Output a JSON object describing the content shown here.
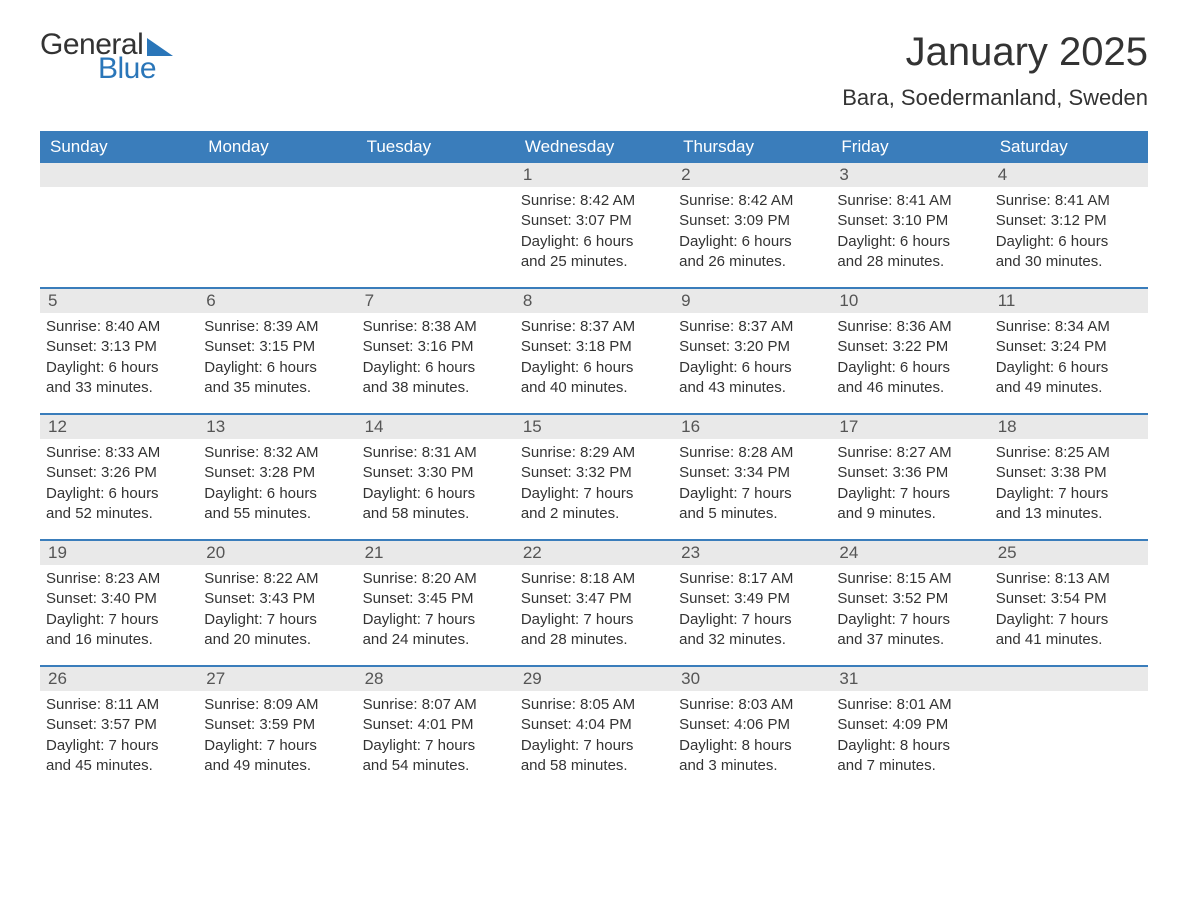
{
  "logo": {
    "text1": "General",
    "text2": "Blue"
  },
  "title": "January 2025",
  "location": "Bara, Soedermanland, Sweden",
  "colors": {
    "brand_blue": "#2a76b9",
    "header_blue": "#3a7dbb",
    "daynum_bg": "#e9e9e9",
    "text": "#333333",
    "background": "#ffffff"
  },
  "typography": {
    "title_fontsize": 40,
    "location_fontsize": 22,
    "weekday_fontsize": 17,
    "daynum_fontsize": 17,
    "body_fontsize": 15
  },
  "weekdays": [
    "Sunday",
    "Monday",
    "Tuesday",
    "Wednesday",
    "Thursday",
    "Friday",
    "Saturday"
  ],
  "weeks": [
    [
      null,
      null,
      null,
      {
        "n": "1",
        "sunrise": "Sunrise: 8:42 AM",
        "sunset": "Sunset: 3:07 PM",
        "d1": "Daylight: 6 hours",
        "d2": "and 25 minutes."
      },
      {
        "n": "2",
        "sunrise": "Sunrise: 8:42 AM",
        "sunset": "Sunset: 3:09 PM",
        "d1": "Daylight: 6 hours",
        "d2": "and 26 minutes."
      },
      {
        "n": "3",
        "sunrise": "Sunrise: 8:41 AM",
        "sunset": "Sunset: 3:10 PM",
        "d1": "Daylight: 6 hours",
        "d2": "and 28 minutes."
      },
      {
        "n": "4",
        "sunrise": "Sunrise: 8:41 AM",
        "sunset": "Sunset: 3:12 PM",
        "d1": "Daylight: 6 hours",
        "d2": "and 30 minutes."
      }
    ],
    [
      {
        "n": "5",
        "sunrise": "Sunrise: 8:40 AM",
        "sunset": "Sunset: 3:13 PM",
        "d1": "Daylight: 6 hours",
        "d2": "and 33 minutes."
      },
      {
        "n": "6",
        "sunrise": "Sunrise: 8:39 AM",
        "sunset": "Sunset: 3:15 PM",
        "d1": "Daylight: 6 hours",
        "d2": "and 35 minutes."
      },
      {
        "n": "7",
        "sunrise": "Sunrise: 8:38 AM",
        "sunset": "Sunset: 3:16 PM",
        "d1": "Daylight: 6 hours",
        "d2": "and 38 minutes."
      },
      {
        "n": "8",
        "sunrise": "Sunrise: 8:37 AM",
        "sunset": "Sunset: 3:18 PM",
        "d1": "Daylight: 6 hours",
        "d2": "and 40 minutes."
      },
      {
        "n": "9",
        "sunrise": "Sunrise: 8:37 AM",
        "sunset": "Sunset: 3:20 PM",
        "d1": "Daylight: 6 hours",
        "d2": "and 43 minutes."
      },
      {
        "n": "10",
        "sunrise": "Sunrise: 8:36 AM",
        "sunset": "Sunset: 3:22 PM",
        "d1": "Daylight: 6 hours",
        "d2": "and 46 minutes."
      },
      {
        "n": "11",
        "sunrise": "Sunrise: 8:34 AM",
        "sunset": "Sunset: 3:24 PM",
        "d1": "Daylight: 6 hours",
        "d2": "and 49 minutes."
      }
    ],
    [
      {
        "n": "12",
        "sunrise": "Sunrise: 8:33 AM",
        "sunset": "Sunset: 3:26 PM",
        "d1": "Daylight: 6 hours",
        "d2": "and 52 minutes."
      },
      {
        "n": "13",
        "sunrise": "Sunrise: 8:32 AM",
        "sunset": "Sunset: 3:28 PM",
        "d1": "Daylight: 6 hours",
        "d2": "and 55 minutes."
      },
      {
        "n": "14",
        "sunrise": "Sunrise: 8:31 AM",
        "sunset": "Sunset: 3:30 PM",
        "d1": "Daylight: 6 hours",
        "d2": "and 58 minutes."
      },
      {
        "n": "15",
        "sunrise": "Sunrise: 8:29 AM",
        "sunset": "Sunset: 3:32 PM",
        "d1": "Daylight: 7 hours",
        "d2": "and 2 minutes."
      },
      {
        "n": "16",
        "sunrise": "Sunrise: 8:28 AM",
        "sunset": "Sunset: 3:34 PM",
        "d1": "Daylight: 7 hours",
        "d2": "and 5 minutes."
      },
      {
        "n": "17",
        "sunrise": "Sunrise: 8:27 AM",
        "sunset": "Sunset: 3:36 PM",
        "d1": "Daylight: 7 hours",
        "d2": "and 9 minutes."
      },
      {
        "n": "18",
        "sunrise": "Sunrise: 8:25 AM",
        "sunset": "Sunset: 3:38 PM",
        "d1": "Daylight: 7 hours",
        "d2": "and 13 minutes."
      }
    ],
    [
      {
        "n": "19",
        "sunrise": "Sunrise: 8:23 AM",
        "sunset": "Sunset: 3:40 PM",
        "d1": "Daylight: 7 hours",
        "d2": "and 16 minutes."
      },
      {
        "n": "20",
        "sunrise": "Sunrise: 8:22 AM",
        "sunset": "Sunset: 3:43 PM",
        "d1": "Daylight: 7 hours",
        "d2": "and 20 minutes."
      },
      {
        "n": "21",
        "sunrise": "Sunrise: 8:20 AM",
        "sunset": "Sunset: 3:45 PM",
        "d1": "Daylight: 7 hours",
        "d2": "and 24 minutes."
      },
      {
        "n": "22",
        "sunrise": "Sunrise: 8:18 AM",
        "sunset": "Sunset: 3:47 PM",
        "d1": "Daylight: 7 hours",
        "d2": "and 28 minutes."
      },
      {
        "n": "23",
        "sunrise": "Sunrise: 8:17 AM",
        "sunset": "Sunset: 3:49 PM",
        "d1": "Daylight: 7 hours",
        "d2": "and 32 minutes."
      },
      {
        "n": "24",
        "sunrise": "Sunrise: 8:15 AM",
        "sunset": "Sunset: 3:52 PM",
        "d1": "Daylight: 7 hours",
        "d2": "and 37 minutes."
      },
      {
        "n": "25",
        "sunrise": "Sunrise: 8:13 AM",
        "sunset": "Sunset: 3:54 PM",
        "d1": "Daylight: 7 hours",
        "d2": "and 41 minutes."
      }
    ],
    [
      {
        "n": "26",
        "sunrise": "Sunrise: 8:11 AM",
        "sunset": "Sunset: 3:57 PM",
        "d1": "Daylight: 7 hours",
        "d2": "and 45 minutes."
      },
      {
        "n": "27",
        "sunrise": "Sunrise: 8:09 AM",
        "sunset": "Sunset: 3:59 PM",
        "d1": "Daylight: 7 hours",
        "d2": "and 49 minutes."
      },
      {
        "n": "28",
        "sunrise": "Sunrise: 8:07 AM",
        "sunset": "Sunset: 4:01 PM",
        "d1": "Daylight: 7 hours",
        "d2": "and 54 minutes."
      },
      {
        "n": "29",
        "sunrise": "Sunrise: 8:05 AM",
        "sunset": "Sunset: 4:04 PM",
        "d1": "Daylight: 7 hours",
        "d2": "and 58 minutes."
      },
      {
        "n": "30",
        "sunrise": "Sunrise: 8:03 AM",
        "sunset": "Sunset: 4:06 PM",
        "d1": "Daylight: 8 hours",
        "d2": "and 3 minutes."
      },
      {
        "n": "31",
        "sunrise": "Sunrise: 8:01 AM",
        "sunset": "Sunset: 4:09 PM",
        "d1": "Daylight: 8 hours",
        "d2": "and 7 minutes."
      },
      null
    ]
  ]
}
